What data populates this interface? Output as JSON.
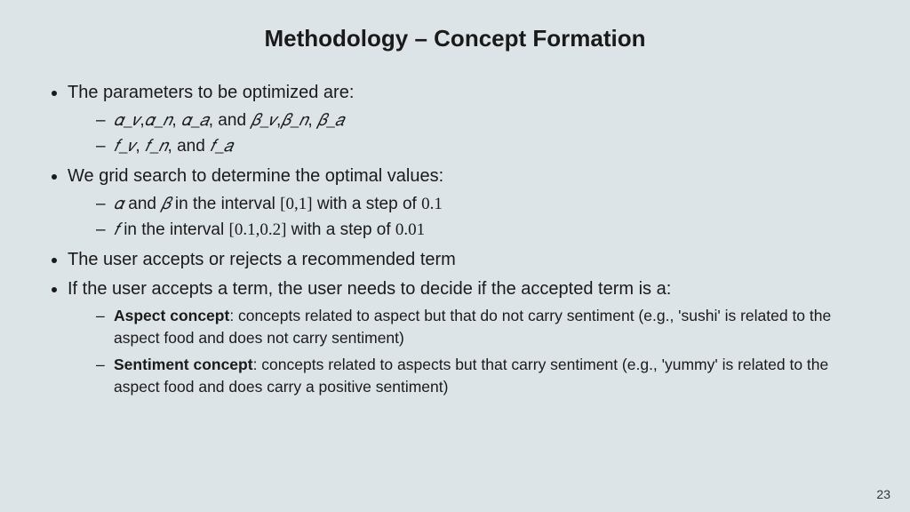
{
  "title": "Methodology – Concept Formation",
  "page_number": "23",
  "b1": "The parameters to be optimized are:",
  "b1s1a": "𝛼_𝑣",
  "b1s1b": ",",
  "b1s1c": "𝛼_𝑛",
  "b1s1d": ", ",
  "b1s1e": "𝛼_𝑎",
  "b1s1f": ", and ",
  "b1s1g": "𝛽_𝑣",
  "b1s1h": ",",
  "b1s1i": "𝛽_𝑛",
  "b1s1j": ", ",
  "b1s1k": "𝛽_𝑎",
  "b1s2a": "𝑓_𝑣",
  "b1s2b": ", ",
  "b1s2c": "𝑓_𝑛",
  "b1s2d": ", and ",
  "b1s2e": "𝑓_𝑎",
  "b2": "We grid search to determine the optimal values:",
  "b2s1a": "𝛼",
  "b2s1b": " and ",
  "b2s1c": "𝛽",
  "b2s1d": " in the interval ",
  "b2s1e": "[0,1]",
  "b2s1f": " with a step of ",
  "b2s1g": "0.1",
  "b2s2a": "𝑓",
  "b2s2b": " in the interval ",
  "b2s2c": "[0.1,0.2]",
  "b2s2d": " with a step of ",
  "b2s2e": "0.01",
  "b3": "The user accepts or rejects a recommended term",
  "b4": "If the user accepts a term, the user needs to decide if the accepted term is a:",
  "b4s1a": "Aspect concept",
  "b4s1b": ": concepts related to aspect but that do not carry sentiment (e.g., 'sushi' is related to the aspect food and does not carry sentiment)",
  "b4s2a": "Sentiment concept",
  "b4s2b": ": concepts related to aspects but that carry sentiment (e.g., 'yummy' is related to the aspect food and does carry a positive sentiment)"
}
